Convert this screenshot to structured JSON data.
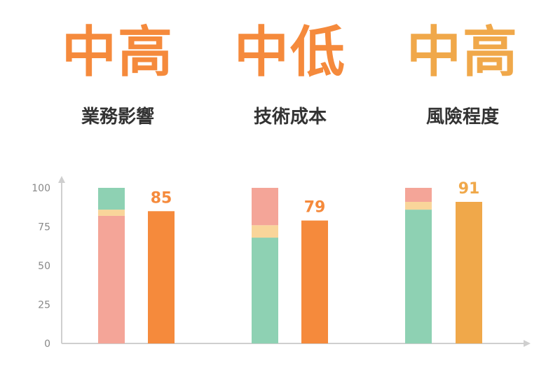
{
  "headline": [
    {
      "rating": "中高",
      "label": "業務影響",
      "color": "#f58a3c"
    },
    {
      "rating": "中低",
      "label": "技術成本",
      "color": "#f58a3c"
    },
    {
      "rating": "中高",
      "label": "風險程度",
      "color": "#f0a84a"
    }
  ],
  "colors": {
    "pink": "#f4a598",
    "yellow": "#f9d59a",
    "green": "#8ed1b3",
    "orange": "#f58a3c",
    "amber": "#f0a84a",
    "axis": "#cfcfcf",
    "tick_text": "#888888"
  },
  "chart_data": {
    "type": "bar",
    "ylim": [
      0,
      100
    ],
    "yticks": [
      "0",
      "25",
      "50",
      "75",
      "100"
    ],
    "groups": [
      {
        "stack": [
          {
            "color_key": "pink",
            "value": 82
          },
          {
            "color_key": "yellow",
            "value": 4
          },
          {
            "color_key": "green",
            "value": 14
          }
        ],
        "bar": {
          "value": 85,
          "label": "85",
          "color_key": "orange"
        }
      },
      {
        "stack": [
          {
            "color_key": "green",
            "value": 68
          },
          {
            "color_key": "yellow",
            "value": 8
          },
          {
            "color_key": "pink",
            "value": 24
          }
        ],
        "bar": {
          "value": 79,
          "label": "79",
          "color_key": "orange"
        }
      },
      {
        "stack": [
          {
            "color_key": "green",
            "value": 86
          },
          {
            "color_key": "yellow",
            "value": 5
          },
          {
            "color_key": "pink",
            "value": 9
          }
        ],
        "bar": {
          "value": 91,
          "label": "91",
          "color_key": "amber"
        }
      }
    ]
  }
}
